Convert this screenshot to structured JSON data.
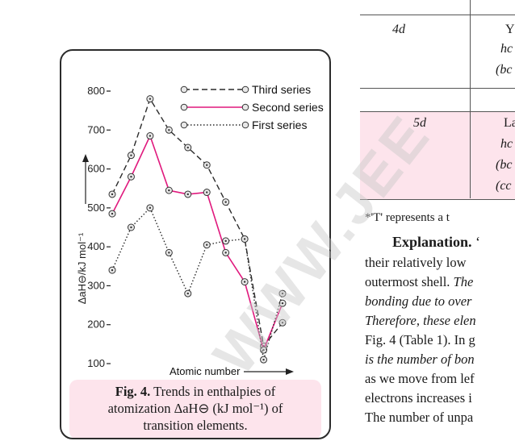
{
  "figure": {
    "caption_label": "Fig. 4.",
    "caption_line1_rest": "Trends in enthalpies of",
    "caption_line2": "atomization ΔaH⊖ (kJ mol⁻¹) of",
    "caption_line3": "transition elements."
  },
  "chart_data": {
    "type": "line",
    "title": "",
    "xlabel": "Atomic number",
    "ylabel": "ΔaH⊖/kJ mol⁻¹",
    "ylim": [
      100,
      850
    ],
    "yticks": [
      100,
      200,
      300,
      400,
      500,
      600,
      700,
      800
    ],
    "legend_position": "top-right",
    "grid": false,
    "series": [
      {
        "name": "Third series",
        "style": "dashed",
        "color": "#2b2b2b",
        "x": [
          1,
          2,
          3,
          4,
          5,
          6,
          7,
          8,
          9,
          10
        ],
        "values": [
          535,
          635,
          780,
          700,
          655,
          610,
          515,
          420,
          145,
          205
        ]
      },
      {
        "name": "Second series",
        "style": "solid",
        "color": "#e0197d",
        "x": [
          1,
          2,
          3,
          4,
          5,
          6,
          7,
          8,
          9,
          10
        ],
        "values": [
          485,
          580,
          685,
          545,
          535,
          540,
          385,
          310,
          135,
          255
        ]
      },
      {
        "name": "First series",
        "style": "dotted",
        "color": "#2b2b2b",
        "x": [
          1,
          2,
          3,
          4,
          5,
          6,
          7,
          8,
          9,
          10
        ],
        "values": [
          340,
          450,
          500,
          385,
          280,
          405,
          415,
          420,
          110,
          280
        ]
      }
    ]
  },
  "table": {
    "row1_label": "4d",
    "row1_right": [
      "Y",
      "hc",
      "(bc"
    ],
    "row2_label": "5d",
    "row2_right": [
      "La",
      "hc",
      "(bc",
      "(cc"
    ]
  },
  "text": {
    "footnote": "*'T' represents a t",
    "line1_bold": "Explanation.",
    "line1_rest": " ‘",
    "line2": "their relatively low",
    "line3_a": "outermost shell. ",
    "line3_b": "The",
    "line4": "bonding due to over",
    "line5": "Therefore, these elen",
    "line6": "Fig. 4 (Table 1). In g",
    "line7": "is the number of bon",
    "line8": "as we move from lef",
    "line9": "electrons increases i",
    "line10": "The number of unpa"
  },
  "watermark": "WWW.JEE"
}
